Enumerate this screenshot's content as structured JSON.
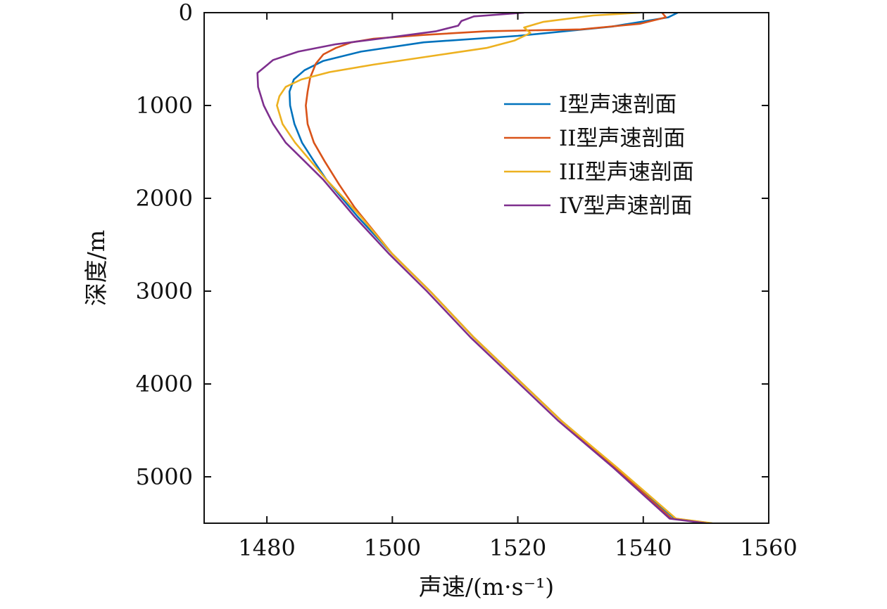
{
  "chart_data": {
    "type": "line",
    "title": "",
    "xlabel": "声速/(m·s⁻¹)",
    "ylabel": "深度/m",
    "xlim": [
      1470,
      1560
    ],
    "ylim": [
      0,
      5500
    ],
    "y_inverted": true,
    "x_ticks": [
      1480,
      1500,
      1520,
      1540,
      1560
    ],
    "x_tick_labels": [
      "1480",
      "1500",
      "1520",
      "1540",
      "1560"
    ],
    "y_ticks": [
      0,
      1000,
      2000,
      3000,
      4000,
      5000
    ],
    "y_tick_labels": [
      "0",
      "1000",
      "2000",
      "3000",
      "4000",
      "5000"
    ],
    "grid": false,
    "legend_position": "upper-right",
    "series": [
      {
        "name": "I型声速剖面",
        "color": "#0072BD",
        "points": [
          [
            1545.5,
            0
          ],
          [
            1544,
            50
          ],
          [
            1535,
            150
          ],
          [
            1520,
            250
          ],
          [
            1505,
            320
          ],
          [
            1495,
            420
          ],
          [
            1489,
            520
          ],
          [
            1486,
            620
          ],
          [
            1484.3,
            720
          ],
          [
            1483.6,
            850
          ],
          [
            1483.7,
            1000
          ],
          [
            1484.4,
            1200
          ],
          [
            1485.6,
            1400
          ],
          [
            1487.5,
            1600
          ],
          [
            1489.5,
            1800
          ],
          [
            1492,
            2000
          ],
          [
            1494.5,
            2200
          ],
          [
            1500,
            2600
          ],
          [
            1506,
            3000
          ],
          [
            1513,
            3500
          ],
          [
            1527,
            4400
          ],
          [
            1535.7,
            4900
          ],
          [
            1545,
            5450
          ],
          [
            1550.8,
            5500
          ]
        ]
      },
      {
        "name": "II型声速剖面",
        "color": "#D95319",
        "points": [
          [
            1543,
            0
          ],
          [
            1543.6,
            50
          ],
          [
            1539.5,
            120
          ],
          [
            1530,
            180
          ],
          [
            1515,
            200
          ],
          [
            1505,
            240
          ],
          [
            1497,
            280
          ],
          [
            1493.5,
            320
          ],
          [
            1491,
            380
          ],
          [
            1489,
            450
          ],
          [
            1487.8,
            550
          ],
          [
            1486.9,
            700
          ],
          [
            1486.5,
            850
          ],
          [
            1486.2,
            1000
          ],
          [
            1486.5,
            1200
          ],
          [
            1487.5,
            1400
          ],
          [
            1489.2,
            1600
          ],
          [
            1491.5,
            1850
          ],
          [
            1494,
            2100
          ],
          [
            1500,
            2600
          ],
          [
            1506,
            3000
          ],
          [
            1513,
            3500
          ],
          [
            1527,
            4400
          ],
          [
            1535.5,
            4900
          ],
          [
            1544.5,
            5450
          ],
          [
            1550.5,
            5500
          ]
        ]
      },
      {
        "name": "III型声速剖面",
        "color": "#EDB120",
        "points": [
          [
            1539.5,
            0
          ],
          [
            1532,
            30
          ],
          [
            1524,
            100
          ],
          [
            1521,
            160
          ],
          [
            1522,
            220
          ],
          [
            1519.5,
            300
          ],
          [
            1515,
            380
          ],
          [
            1508,
            450
          ],
          [
            1497,
            560
          ],
          [
            1490,
            640
          ],
          [
            1485.5,
            720
          ],
          [
            1483,
            800
          ],
          [
            1482,
            900
          ],
          [
            1481.6,
            1000
          ],
          [
            1482.5,
            1200
          ],
          [
            1484.5,
            1400
          ],
          [
            1487,
            1600
          ],
          [
            1489.5,
            1800
          ],
          [
            1492.3,
            2000
          ],
          [
            1495,
            2200
          ],
          [
            1500,
            2600
          ],
          [
            1506,
            3000
          ],
          [
            1513,
            3500
          ],
          [
            1527,
            4400
          ],
          [
            1535.8,
            4900
          ],
          [
            1545.2,
            5450
          ],
          [
            1551,
            5500
          ]
        ]
      },
      {
        "name": "IV型声速剖面",
        "color": "#7E2F8E",
        "points": [
          [
            1521,
            0
          ],
          [
            1513,
            40
          ],
          [
            1511,
            90
          ],
          [
            1510.5,
            140
          ],
          [
            1507,
            200
          ],
          [
            1498,
            280
          ],
          [
            1491,
            340
          ],
          [
            1485,
            420
          ],
          [
            1481,
            510
          ],
          [
            1478.5,
            650
          ],
          [
            1478.6,
            800
          ],
          [
            1479.5,
            1000
          ],
          [
            1481,
            1200
          ],
          [
            1483,
            1400
          ],
          [
            1486,
            1600
          ],
          [
            1489,
            1800
          ],
          [
            1491.5,
            2000
          ],
          [
            1494,
            2200
          ],
          [
            1499.5,
            2600
          ],
          [
            1505.5,
            3000
          ],
          [
            1512.5,
            3500
          ],
          [
            1526.5,
            4400
          ],
          [
            1535.2,
            4900
          ],
          [
            1544.2,
            5450
          ],
          [
            1550,
            5500
          ]
        ]
      }
    ]
  }
}
